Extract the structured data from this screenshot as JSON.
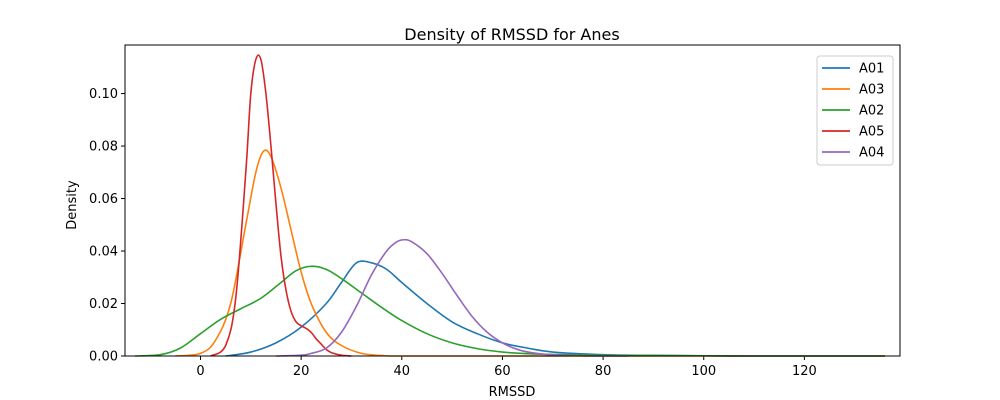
{
  "chart_data": {
    "type": "line",
    "title": "Density of RMSSD for Anes",
    "xlabel": "RMSSD",
    "ylabel": "Density",
    "xlim": [
      -15,
      139
    ],
    "ylim": [
      0,
      0.1185
    ],
    "xticks": [
      0,
      20,
      40,
      60,
      80,
      100,
      120,
      140
    ],
    "yticks": [
      0.0,
      0.02,
      0.04,
      0.06,
      0.08,
      0.1
    ],
    "ytick_labels": [
      "0.00",
      "0.02",
      "0.04",
      "0.06",
      "0.08",
      "0.10"
    ],
    "legend_position": "top-right",
    "series": [
      {
        "name": "A01",
        "color": "#1f77b4",
        "x": [
          5,
          10,
          15,
          20,
          25,
          28,
          31,
          34,
          37,
          40,
          45,
          50,
          55,
          60,
          65,
          70,
          80,
          90,
          100,
          110,
          120,
          136
        ],
        "y": [
          0.0,
          0.0015,
          0.005,
          0.011,
          0.02,
          0.028,
          0.0355,
          0.0355,
          0.033,
          0.028,
          0.02,
          0.013,
          0.0085,
          0.005,
          0.003,
          0.0015,
          0.0005,
          0.0002,
          0.0001,
          0.0,
          0.0,
          0.0
        ]
      },
      {
        "name": "A03",
        "color": "#ff7f0e",
        "x": [
          -5,
          0,
          3,
          6,
          9,
          11,
          12.5,
          14,
          16,
          18,
          20,
          22,
          25,
          28,
          32,
          36,
          40,
          60,
          80,
          100,
          120,
          136
        ],
        "y": [
          0.0,
          0.001,
          0.006,
          0.02,
          0.05,
          0.07,
          0.078,
          0.076,
          0.064,
          0.048,
          0.032,
          0.02,
          0.009,
          0.004,
          0.001,
          0.0002,
          0.0,
          0.0,
          0.0,
          0.0,
          0.0,
          0.0
        ]
      },
      {
        "name": "A02",
        "color": "#2ca02c",
        "x": [
          -13,
          -8,
          -4,
          0,
          4,
          8,
          12,
          16,
          19,
          22,
          25,
          28,
          32,
          36,
          40,
          45,
          50,
          55,
          60,
          65,
          70,
          80,
          90,
          100,
          110,
          120,
          136
        ],
        "y": [
          0.0,
          0.0005,
          0.003,
          0.0085,
          0.014,
          0.018,
          0.022,
          0.028,
          0.0325,
          0.0342,
          0.033,
          0.0295,
          0.024,
          0.0185,
          0.0135,
          0.0085,
          0.005,
          0.0028,
          0.0015,
          0.0009,
          0.0006,
          0.0003,
          0.0002,
          0.0001,
          0.0,
          0.0,
          0.0
        ]
      },
      {
        "name": "A05",
        "color": "#d62728",
        "x": [
          2,
          5,
          7,
          9,
          10,
          11,
          12,
          13,
          14,
          15,
          16,
          17,
          18,
          19,
          20,
          21,
          22,
          23,
          24,
          25,
          26,
          28,
          30
        ],
        "y": [
          0.0,
          0.004,
          0.022,
          0.07,
          0.1,
          0.113,
          0.113,
          0.1,
          0.08,
          0.058,
          0.038,
          0.025,
          0.017,
          0.013,
          0.0115,
          0.0105,
          0.009,
          0.0065,
          0.0045,
          0.0025,
          0.0013,
          0.0003,
          0.0
        ]
      },
      {
        "name": "A04",
        "color": "#9467bd",
        "x": [
          15,
          20,
          22,
          25,
          28,
          31,
          34,
          37,
          39,
          40.5,
          42,
          45,
          48,
          51,
          54,
          57,
          60,
          63,
          66,
          70,
          75,
          80,
          85
        ],
        "y": [
          0.0,
          0.0003,
          0.001,
          0.003,
          0.009,
          0.019,
          0.031,
          0.04,
          0.0435,
          0.0443,
          0.0435,
          0.039,
          0.0315,
          0.023,
          0.015,
          0.009,
          0.005,
          0.0025,
          0.0012,
          0.0004,
          0.0001,
          0.0,
          0.0
        ]
      }
    ]
  }
}
